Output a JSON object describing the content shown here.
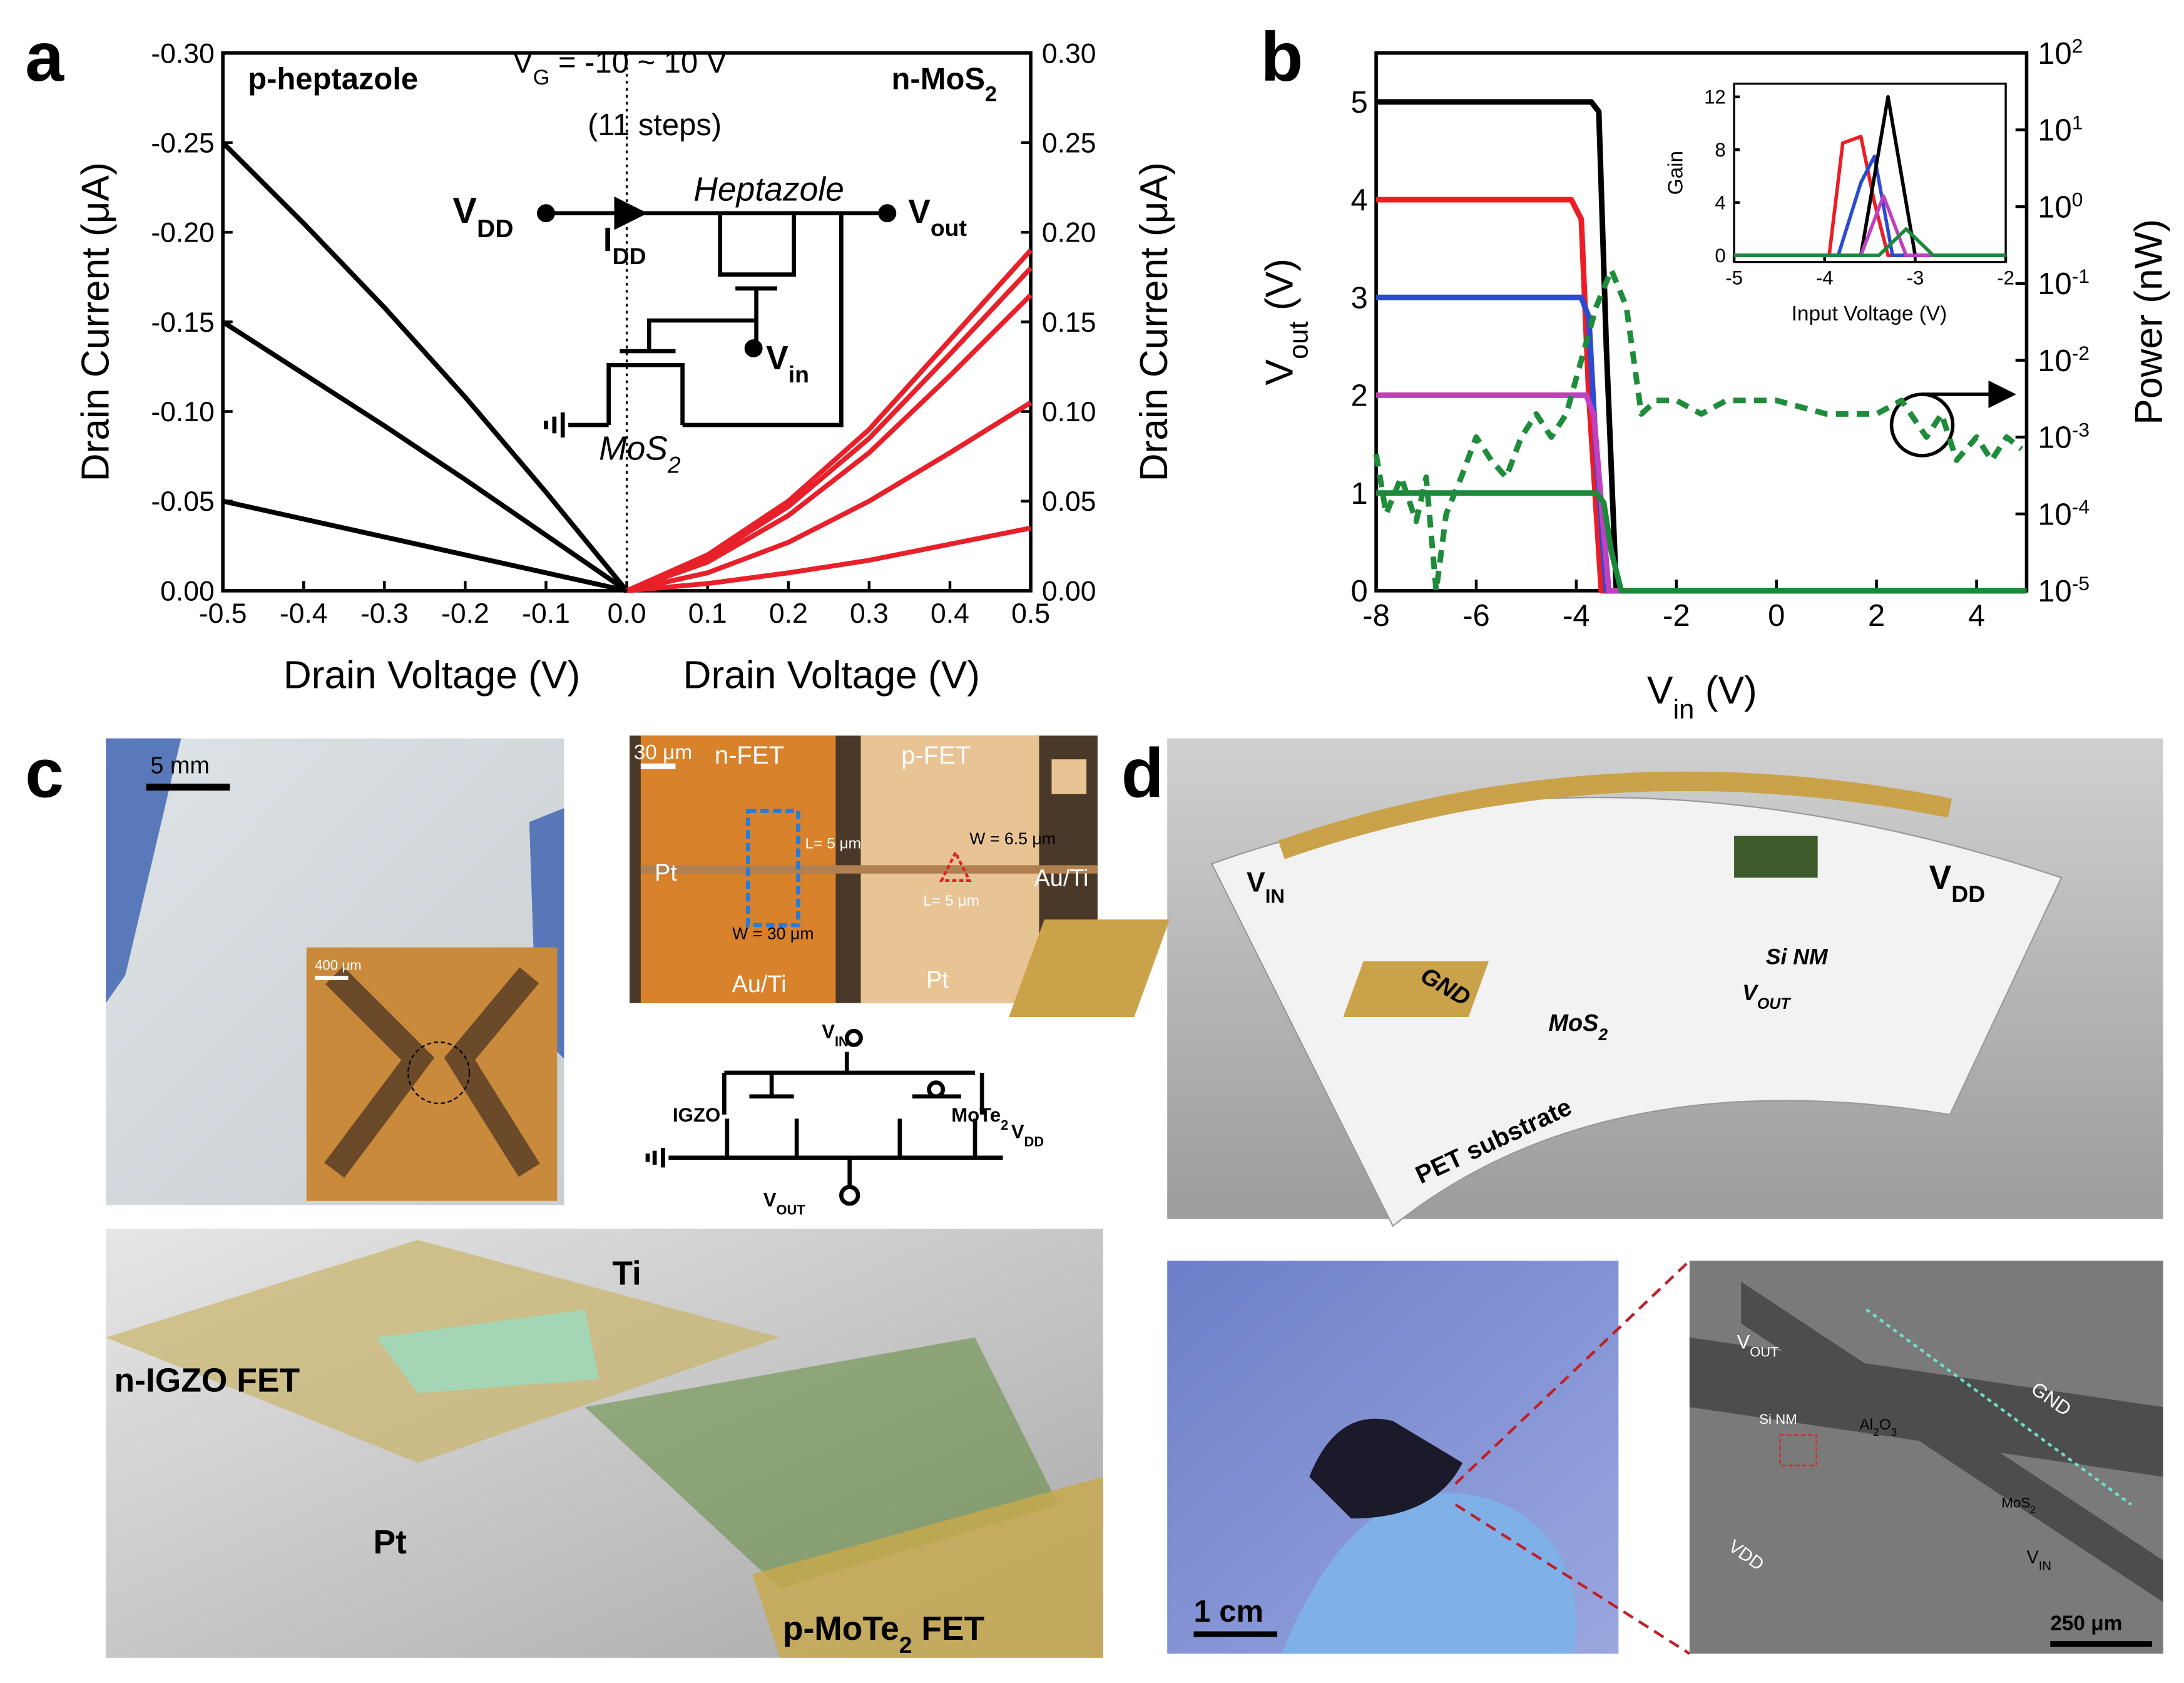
{
  "panel_labels": [
    "a",
    "b",
    "c",
    "d"
  ],
  "chart_data": [
    {
      "type": "line",
      "annotations": [
        "p-heptazole",
        [
          {
            "text": "V"
          },
          {
            "sub": "G"
          },
          {
            "text": " = -10 ~ 10 V"
          }
        ],
        "(11 steps)",
        [
          {
            "text": "n-MoS"
          },
          {
            "sub": "2"
          }
        ]
      ],
      "circuit_labels": [
        [
          {
            "text": "V"
          },
          {
            "sub": "DD"
          }
        ],
        [
          {
            "text": "I"
          },
          {
            "sub": "DD"
          }
        ],
        "Heptazole",
        [
          {
            "text": "V"
          },
          {
            "sub": "out"
          }
        ],
        [
          {
            "text": "V"
          },
          {
            "sub": "in"
          }
        ],
        [
          {
            "text": "MoS"
          },
          {
            "sub": "2"
          }
        ]
      ],
      "ylabel": "Drain Current (μA)",
      "y2label": "Drain Current (μA)",
      "xlabels": [
        "Drain Voltage (V)",
        "Drain Voltage (V)"
      ],
      "xlim": [
        -0.5,
        0.5
      ],
      "xticks": [
        -0.5,
        -0.4,
        -0.3,
        -0.2,
        -0.1,
        {
          "value": 0,
          "label": "0.0"
        },
        0.1,
        0.2,
        0.3,
        0.4,
        0.5
      ],
      "ylim": [
        0,
        -0.3
      ],
      "yticks": [
        {
          "value": 0,
          "label": "0.00"
        },
        {
          "value": -0.05,
          "label": "-0.05"
        },
        {
          "value": -0.1,
          "label": "-0.10"
        },
        {
          "value": -0.15,
          "label": "-0.15"
        },
        {
          "value": -0.2,
          "label": "-0.20"
        },
        {
          "value": -0.25,
          "label": "-0.25"
        },
        {
          "value": -0.3,
          "label": "-0.30"
        }
      ],
      "y2lim": [
        0,
        0.3
      ],
      "y2ticks": [
        {
          "value": 0,
          "label": "0.00"
        },
        0.05,
        {
          "value": 0.1,
          "label": "0.10"
        },
        0.15,
        {
          "value": 0.2,
          "label": "0.20"
        },
        0.25,
        {
          "value": 0.3,
          "label": "0.30"
        }
      ],
      "series": [
        {
          "color": "#000000",
          "x": [
            -0.5,
            -0.4,
            -0.3,
            -0.2,
            -0.1,
            0
          ],
          "values": [
            -0.25,
            -0.205,
            -0.158,
            -0.108,
            -0.055,
            0
          ]
        },
        {
          "color": "#000000",
          "x": [
            -0.5,
            -0.4,
            -0.3,
            -0.2,
            -0.1,
            0
          ],
          "values": [
            -0.15,
            -0.121,
            -0.092,
            -0.062,
            -0.031,
            0
          ]
        },
        {
          "color": "#000000",
          "x": [
            -0.5,
            -0.4,
            -0.3,
            -0.2,
            -0.1,
            0
          ],
          "values": [
            -0.05,
            -0.04,
            -0.03,
            -0.02,
            -0.01,
            0
          ]
        },
        {
          "color": "#e8202a",
          "axis": "y2",
          "x": [
            0,
            0.1,
            0.2,
            0.3,
            0.4,
            0.5
          ],
          "values": [
            0,
            0.02,
            0.05,
            0.09,
            0.14,
            0.19
          ]
        },
        {
          "color": "#e8202a",
          "axis": "y2",
          "x": [
            0,
            0.1,
            0.2,
            0.3,
            0.4,
            0.5
          ],
          "values": [
            0,
            0.018,
            0.047,
            0.085,
            0.132,
            0.18
          ]
        },
        {
          "color": "#e8202a",
          "axis": "y2",
          "x": [
            0,
            0.1,
            0.2,
            0.3,
            0.4,
            0.5
          ],
          "values": [
            0,
            0.016,
            0.042,
            0.077,
            0.12,
            0.165
          ]
        },
        {
          "color": "#e8202a",
          "axis": "y2",
          "x": [
            0,
            0.1,
            0.2,
            0.3,
            0.4,
            0.5
          ],
          "values": [
            0,
            0.01,
            0.027,
            0.05,
            0.077,
            0.105
          ]
        },
        {
          "color": "#e8202a",
          "axis": "y2",
          "x": [
            0,
            0.1,
            0.2,
            0.3,
            0.4,
            0.5
          ],
          "values": [
            0,
            0.004,
            0.01,
            0.017,
            0.026,
            0.035
          ]
        }
      ]
    },
    {
      "type": "line",
      "xlabel": [
        {
          "text": "V"
        },
        {
          "sub": "in"
        },
        {
          "text": " (V)"
        }
      ],
      "ylabel": [
        {
          "text": "V"
        },
        {
          "sub": "out"
        },
        {
          "text": " (V)"
        }
      ],
      "y2label": "Power (nW)",
      "xlim": [
        -8,
        5
      ],
      "xticks": [
        -8,
        -6,
        -4,
        -2,
        0,
        2,
        4
      ],
      "ylim": [
        0,
        5.5
      ],
      "yticks": [
        0,
        1,
        2,
        3,
        4,
        5
      ],
      "y2lim": [
        1e-05,
        100
      ],
      "y2log": true,
      "y2ticks": [
        {
          "value": 1e-05,
          "label": [
            {
              "text": "10"
            },
            {
              "sup": "-5"
            }
          ]
        },
        {
          "value": 0.0001,
          "label": [
            {
              "text": "10"
            },
            {
              "sup": "-4"
            }
          ]
        },
        {
          "value": 0.001,
          "label": [
            {
              "text": "10"
            },
            {
              "sup": "-3"
            }
          ]
        },
        {
          "value": 0.01,
          "label": [
            {
              "text": "10"
            },
            {
              "sup": "-2"
            }
          ]
        },
        {
          "value": 0.1,
          "label": [
            {
              "text": "10"
            },
            {
              "sup": "-1"
            }
          ]
        },
        {
          "value": 1,
          "label": [
            {
              "text": "10"
            },
            {
              "sup": "0"
            }
          ]
        },
        {
          "value": 10,
          "label": [
            {
              "text": "10"
            },
            {
              "sup": "1"
            }
          ]
        },
        {
          "value": 100,
          "label": [
            {
              "text": "10"
            },
            {
              "sup": "2"
            }
          ]
        }
      ],
      "series": [
        {
          "color": "#000000",
          "x": [
            -8,
            -3.7,
            -3.55,
            -3.4,
            -3.2,
            5
          ],
          "values": [
            5,
            5,
            4.9,
            2.5,
            0,
            0
          ]
        },
        {
          "color": "#ee1c25",
          "x": [
            -8,
            -4.1,
            -3.9,
            -3.75,
            -3.5,
            5
          ],
          "values": [
            4,
            4,
            3.8,
            2,
            0,
            0
          ]
        },
        {
          "color": "#2b4bd0",
          "x": [
            -8,
            -3.9,
            -3.75,
            -3.6,
            -3.4,
            5
          ],
          "values": [
            3,
            3,
            2.8,
            1.4,
            0,
            0
          ]
        },
        {
          "color": "#c040c0",
          "x": [
            -8,
            -3.8,
            -3.65,
            -3.5,
            -3.35,
            5
          ],
          "values": [
            2,
            2,
            1.8,
            0.9,
            0,
            0
          ]
        },
        {
          "color": "#1a8a3a",
          "x": [
            -8,
            -3.6,
            -3.45,
            -3.3,
            -3.1,
            5
          ],
          "values": [
            1,
            1,
            0.9,
            0.4,
            0,
            0
          ]
        },
        {
          "color": "#1e8c3a",
          "axis": "y2",
          "dash": true,
          "x": [
            -8,
            -7.8,
            -7.5,
            -7.2,
            -7,
            -6.8,
            -6.6,
            -6.3,
            -6,
            -5.7,
            -5.4,
            -5.1,
            -4.8,
            -4.5,
            -4.2,
            -3.9,
            -3.6,
            -3.3,
            -3,
            -2.7,
            -2.4,
            -2,
            -1.5,
            -1,
            0,
            1,
            2,
            2.5,
            3,
            3.3,
            3.6,
            4,
            4.3,
            4.6,
            4.9
          ],
          "values": [
            0.0006,
            0.0001,
            0.0003,
            8e-05,
            0.0003,
            1e-05,
            0.0001,
            0.0003,
            0.001,
            0.0005,
            0.0003,
            0.001,
            0.002,
            0.001,
            0.002,
            0.01,
            0.05,
            0.15,
            0.05,
            0.002,
            0.003,
            0.003,
            0.002,
            0.003,
            0.003,
            0.002,
            0.002,
            0.003,
            0.001,
            0.002,
            0.0005,
            0.001,
            0.0005,
            0.001,
            0.0007
          ]
        }
      ]
    },
    {
      "type": "line",
      "ylabel": "Gain",
      "xlabel": "Input Voltage (V)",
      "xlim": [
        -5,
        -2
      ],
      "xticks": [
        -5,
        -4,
        -3,
        -2
      ],
      "ylim": [
        -0.5,
        13
      ],
      "yticks": [
        0,
        4,
        8,
        12
      ],
      "series": [
        {
          "color": "#ee1c25",
          "x": [
            -5,
            -3.95,
            -3.8,
            -3.6,
            -3.45,
            -3.3,
            -2
          ],
          "values": [
            0,
            0,
            8.5,
            9,
            4,
            0,
            0
          ]
        },
        {
          "color": "#2b4bd0",
          "x": [
            -5,
            -3.85,
            -3.6,
            -3.45,
            -3.25,
            -2
          ],
          "values": [
            0,
            0,
            5.5,
            7.5,
            0,
            0
          ]
        },
        {
          "color": "#000000",
          "x": [
            -5,
            -3.6,
            -3.3,
            -3,
            -2
          ],
          "values": [
            0,
            0,
            12,
            0,
            0
          ]
        },
        {
          "color": "#c040c0",
          "x": [
            -5,
            -3.6,
            -3.35,
            -3.1,
            -2
          ],
          "values": [
            0,
            0,
            4.5,
            0,
            0
          ]
        },
        {
          "color": "#1a8a3a",
          "x": [
            -5,
            -3.4,
            -3.1,
            -2.8,
            -2
          ],
          "values": [
            0,
            0,
            2,
            0,
            0
          ]
        }
      ]
    }
  ],
  "panel_c": {
    "photo": [
      "5 mm",
      "400 μm"
    ],
    "micrograph": [
      "30 μm",
      "n-FET",
      "p-FET",
      "Pt",
      "L= 5 μm",
      "W = 6.5 μm",
      "Au/Ti",
      "L= 5 μm",
      "W = 30 μm",
      "Au/Ti",
      "Pt"
    ],
    "circuit": [
      [
        {
          "text": "V"
        },
        {
          "sub": "IN"
        }
      ],
      "IGZO",
      [
        {
          "text": "MoTe"
        },
        {
          "sub": "2"
        }
      ],
      [
        {
          "text": "V"
        },
        {
          "sub": "DD"
        }
      ],
      [
        {
          "text": "V"
        },
        {
          "sub": "OUT"
        }
      ]
    ],
    "render": [
      "Ti",
      "n-IGZO FET",
      "Pt",
      [
        {
          "text": "p-MoTe"
        },
        {
          "sub": "2"
        },
        {
          "text": " FET"
        }
      ]
    ]
  },
  "panel_d": {
    "render": [
      [
        {
          "text": "V"
        },
        {
          "sub": "IN"
        }
      ],
      [
        {
          "text": "V"
        },
        {
          "sub": "DD"
        }
      ],
      "GND",
      [
        {
          "text": "MoS"
        },
        {
          "sub": "2"
        }
      ],
      "Si NM",
      [
        {
          "text": "V"
        },
        {
          "sub": "OUT"
        }
      ],
      "PET substrate"
    ],
    "photo": [
      "1 cm"
    ],
    "sem": [
      [
        {
          "text": "V"
        },
        {
          "sub": "OUT"
        }
      ],
      "GND",
      "Si NM",
      [
        {
          "text": "Al"
        },
        {
          "sub": "2"
        },
        {
          "text": "O"
        },
        {
          "sub": "3"
        }
      ],
      "VDD",
      [
        {
          "text": "MoS"
        },
        {
          "sub": "2"
        }
      ],
      [
        {
          "text": "V"
        },
        {
          "sub": "IN"
        }
      ],
      "250 μm"
    ]
  }
}
